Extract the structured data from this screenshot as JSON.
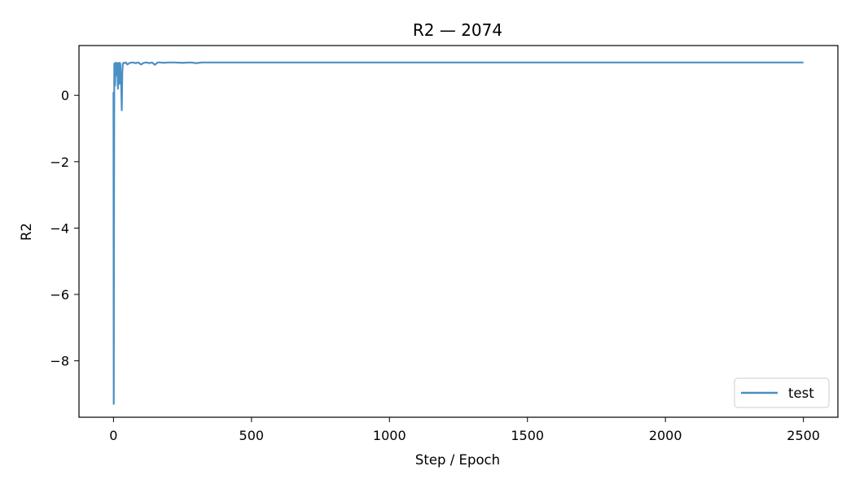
{
  "chart_data": {
    "type": "line",
    "title": "R2 — 2074",
    "xlabel": "Step / Epoch",
    "ylabel": "R2",
    "xlim": [
      -125,
      2625
    ],
    "ylim": [
      -9.7,
      1.5
    ],
    "xticks": [
      0,
      500,
      1000,
      1500,
      2000,
      2500
    ],
    "xtick_labels": [
      "0",
      "500",
      "1000",
      "1500",
      "2000",
      "2500"
    ],
    "yticks": [
      0,
      -2,
      -4,
      -6,
      -8
    ],
    "ytick_labels": [
      "0",
      "−2",
      "−4",
      "−6",
      "−8"
    ],
    "grid": false,
    "legend_position": "lower-right",
    "series": [
      {
        "name": "test",
        "color": "#4a90c4",
        "x": [
          0,
          1,
          2,
          3,
          4,
          5,
          6,
          7,
          8,
          9,
          10,
          12,
          14,
          16,
          18,
          20,
          22,
          24,
          25,
          26,
          28,
          30,
          32,
          34,
          36,
          40,
          45,
          50,
          60,
          70,
          80,
          90,
          100,
          110,
          120,
          130,
          140,
          150,
          160,
          170,
          180,
          200,
          220,
          250,
          280,
          300,
          320,
          350,
          400,
          500,
          600,
          800,
          1000,
          1500,
          2000,
          2500
        ],
        "y": [
          0.1,
          -9.3,
          -3.0,
          0.95,
          0.5,
          0.97,
          0.3,
          0.98,
          0.7,
          0.96,
          0.98,
          0.6,
          0.97,
          0.2,
          0.95,
          0.98,
          0.35,
          0.97,
          0.9,
          0.5,
          0.3,
          -0.45,
          0.7,
          0.95,
          0.98,
          0.97,
          0.99,
          0.93,
          0.98,
          0.99,
          0.97,
          0.99,
          0.93,
          0.98,
          0.99,
          0.97,
          0.99,
          0.92,
          0.99,
          0.99,
          0.98,
          0.99,
          0.99,
          0.98,
          0.99,
          0.97,
          0.99,
          0.99,
          0.99,
          0.99,
          0.99,
          0.99,
          0.99,
          0.99,
          0.99,
          0.99
        ]
      }
    ]
  }
}
